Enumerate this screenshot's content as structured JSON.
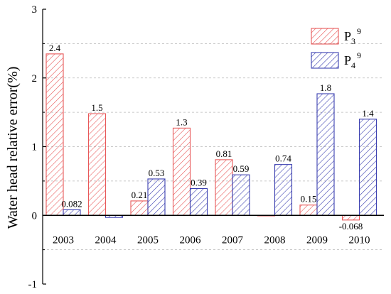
{
  "chart_data": {
    "type": "bar",
    "categories": [
      "2003",
      "2004",
      "2005",
      "2006",
      "2007",
      "2008",
      "2009",
      "2010"
    ],
    "series": [
      {
        "name": "P3^9",
        "name_main": "P",
        "name_sub": "3",
        "name_sup": "9",
        "color": "#e8595a",
        "values": [
          2.35,
          1.48,
          0.21,
          1.27,
          0.81,
          0.0,
          0.15,
          -0.068
        ],
        "labels": [
          "2.4",
          "1.5",
          "0.21",
          "1.3",
          "0.81",
          "",
          "0.15",
          "-0.068"
        ]
      },
      {
        "name": "P4^9",
        "name_main": "P",
        "name_sub": "4",
        "name_sup": "9",
        "color": "#3b3fb0",
        "values": [
          0.082,
          -0.03,
          0.53,
          0.39,
          0.59,
          0.74,
          1.77,
          1.4
        ],
        "labels": [
          "0.082",
          "",
          "0.53",
          "0.39",
          "0.59",
          "0.74",
          "1.8",
          "1.4"
        ]
      }
    ],
    "title": "",
    "xlabel": "",
    "ylabel": "Water head relative error(%)",
    "ylim": [
      -1,
      3
    ],
    "yticks": [
      "-1",
      "0",
      "1",
      "2",
      "3"
    ],
    "grid": "dashed horizontal",
    "legend": "top-right"
  }
}
